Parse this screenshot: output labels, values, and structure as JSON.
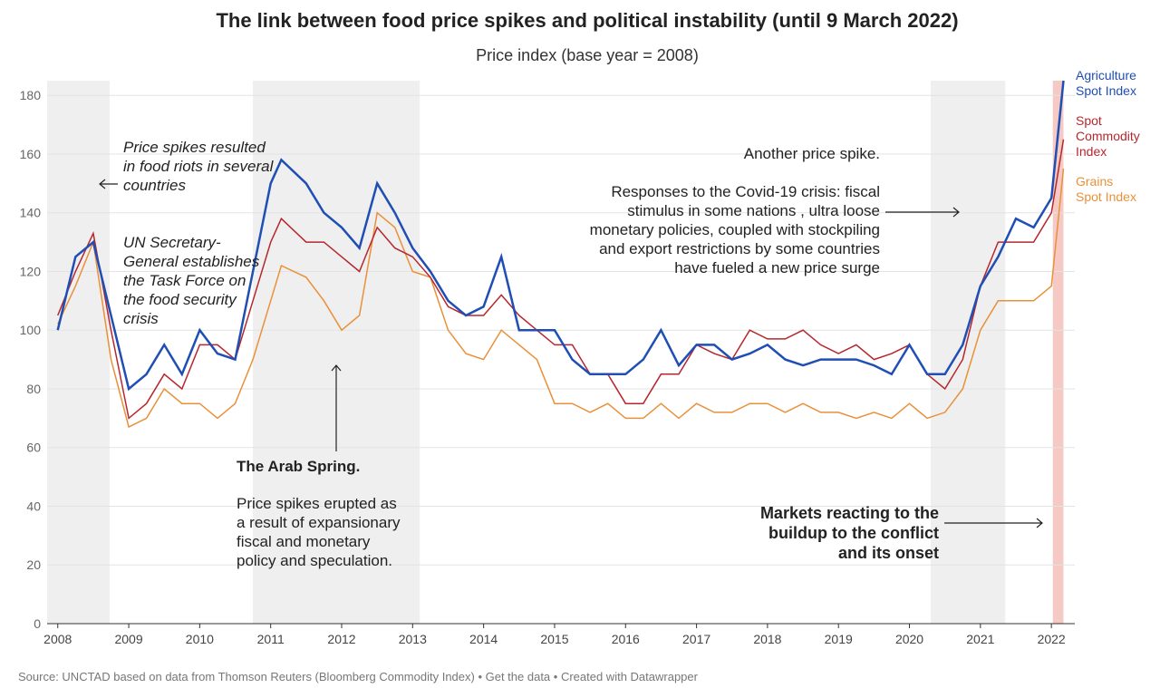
{
  "chart_data": {
    "type": "line",
    "title": "The link between food price spikes and political instability (until 9 March 2022)",
    "subtitle": "Price index (base year = 2008)",
    "x": [
      2008.0,
      2008.25,
      2008.5,
      2008.75,
      2009.0,
      2009.25,
      2009.5,
      2009.75,
      2010.0,
      2010.25,
      2010.5,
      2010.75,
      2011.0,
      2011.15,
      2011.5,
      2011.75,
      2012.0,
      2012.25,
      2012.5,
      2012.75,
      2013.0,
      2013.25,
      2013.5,
      2013.75,
      2014.0,
      2014.25,
      2014.5,
      2014.75,
      2015.0,
      2015.25,
      2015.5,
      2015.75,
      2016.0,
      2016.25,
      2016.5,
      2016.75,
      2017.0,
      2017.25,
      2017.5,
      2017.75,
      2018.0,
      2018.25,
      2018.5,
      2018.75,
      2019.0,
      2019.25,
      2019.5,
      2019.75,
      2020.0,
      2020.25,
      2020.5,
      2020.75,
      2021.0,
      2021.25,
      2021.5,
      2021.75,
      2022.0,
      2022.17
    ],
    "series": [
      {
        "name": "Grains Spot Index",
        "color": "#e8913a",
        "values": [
          102,
          115,
          130,
          90,
          67,
          70,
          80,
          75,
          75,
          70,
          75,
          90,
          110,
          122,
          118,
          110,
          100,
          105,
          140,
          135,
          120,
          118,
          100,
          92,
          90,
          100,
          95,
          90,
          75,
          75,
          72,
          75,
          70,
          70,
          75,
          70,
          75,
          72,
          72,
          75,
          75,
          72,
          75,
          72,
          72,
          70,
          72,
          70,
          75,
          70,
          72,
          80,
          100,
          110,
          110,
          110,
          115,
          155
        ]
      },
      {
        "name": "Spot Commodity Index",
        "color": "#b5272d",
        "values": [
          105,
          120,
          133,
          100,
          70,
          75,
          85,
          80,
          95,
          95,
          90,
          110,
          130,
          138,
          130,
          130,
          125,
          120,
          135,
          128,
          125,
          118,
          108,
          105,
          105,
          112,
          105,
          100,
          95,
          95,
          85,
          85,
          75,
          75,
          85,
          85,
          95,
          92,
          90,
          100,
          97,
          97,
          100,
          95,
          92,
          95,
          90,
          92,
          95,
          85,
          80,
          90,
          115,
          130,
          130,
          130,
          140,
          165
        ]
      },
      {
        "name": "Agriculture Spot Index",
        "color": "#1f4eb4",
        "values": [
          100,
          125,
          130,
          105,
          80,
          85,
          95,
          85,
          100,
          92,
          90,
          120,
          150,
          158,
          150,
          140,
          135,
          128,
          150,
          140,
          128,
          120,
          110,
          105,
          108,
          125,
          100,
          100,
          100,
          90,
          85,
          85,
          85,
          90,
          100,
          88,
          95,
          95,
          90,
          92,
          95,
          90,
          88,
          90,
          90,
          90,
          88,
          85,
          95,
          85,
          85,
          95,
          115,
          125,
          138,
          135,
          145,
          185
        ]
      }
    ],
    "xlim": [
      2007.85,
      2022.33
    ],
    "ylim": [
      0,
      185
    ],
    "xticks": [
      2008,
      2009,
      2010,
      2011,
      2012,
      2013,
      2014,
      2015,
      2016,
      2017,
      2018,
      2019,
      2020,
      2021,
      2022
    ],
    "yticks": [
      0,
      20,
      40,
      60,
      80,
      100,
      120,
      140,
      160,
      180
    ],
    "grid": true,
    "highlights": [
      {
        "x": [
          2007.85,
          2008.73
        ],
        "color": "#efefef"
      },
      {
        "x": [
          2010.75,
          2013.1
        ],
        "color": "#efefef"
      },
      {
        "x": [
          2020.3,
          2021.35
        ],
        "color": "#efefef"
      },
      {
        "x": [
          2022.02,
          2022.17
        ],
        "color": "#f5c9c4"
      }
    ],
    "annotations": [
      "Price spikes resulted in food riots in several countries",
      "UN Secretary-General establishes the Task Force on the food security crisis",
      "The Arab Spring.",
      "Price spikes erupted as a result of expansionary fiscal and monetary policy and speculation.",
      "Another price spike.",
      "Responses to the Covid-19 crisis: fiscal stimulus in some nations , ultra loose monetary policies, coupled with stockpiling and export restrictions by some countries have fueled a new price surge",
      "Markets reacting to the buildup to the conflict and its onset"
    ],
    "source": "Source: UNCTAD based on data from Thomson Reuters (Bloomberg Commodity Index) • Get the data • Created with Datawrapper"
  }
}
